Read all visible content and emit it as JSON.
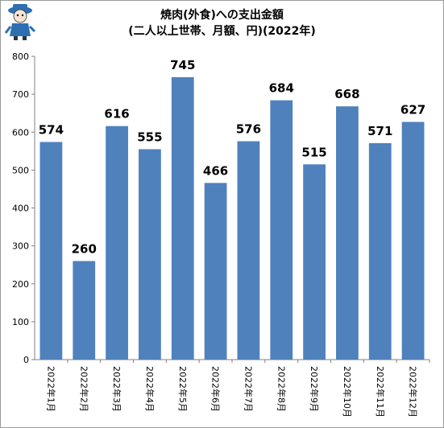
{
  "chart_data": {
    "type": "bar",
    "title": "焼肉(外食)への支出金額",
    "subtitle": "(二人以上世帯、月額、円)(2022年)",
    "categories": [
      "2022年1月",
      "2022年2月",
      "2022年3月",
      "2022年4月",
      "2022年5月",
      "2022年6月",
      "2022年7月",
      "2022年8月",
      "2022年9月",
      "2022年10月",
      "2022年11月",
      "2022年12月"
    ],
    "values": [
      574,
      260,
      616,
      555,
      745,
      466,
      576,
      684,
      515,
      668,
      571,
      627
    ],
    "ylim": [
      0,
      800
    ],
    "yticks": [
      0,
      100,
      200,
      300,
      400,
      500,
      600,
      700,
      800
    ],
    "grid": false,
    "legend": "none",
    "bar_color": "#4f81bd"
  }
}
